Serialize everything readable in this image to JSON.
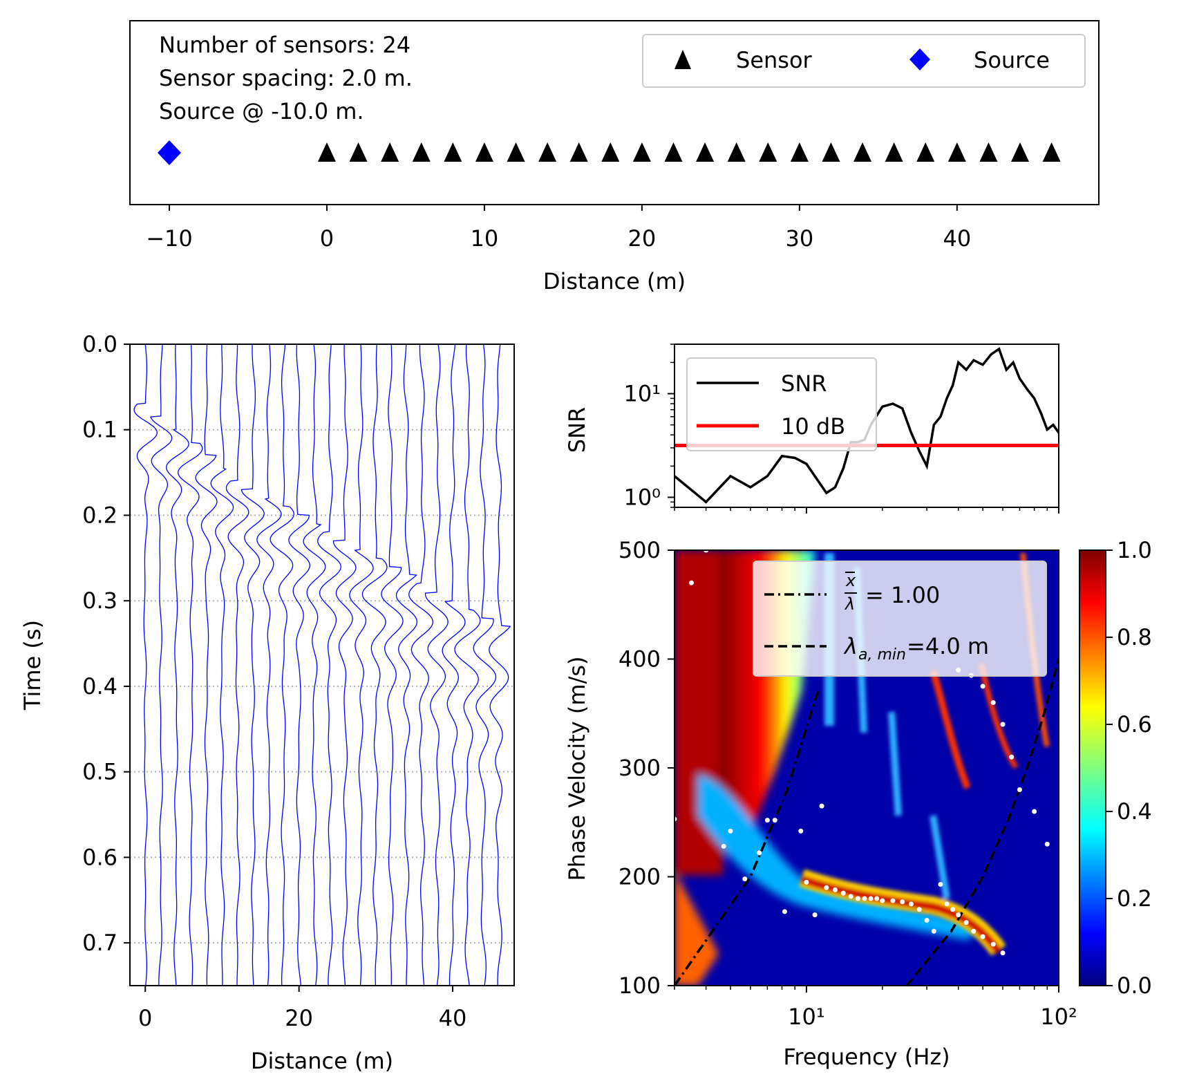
{
  "chart_data": [
    {
      "type": "scatter",
      "annotations": [
        "Number of sensors: 24",
        "Sensor spacing: 2.0 m.",
        "Source @ -10.0 m."
      ],
      "xlabel": "Distance (m)",
      "xlim": [
        -12.5,
        49
      ],
      "xticks": [
        -10,
        0,
        10,
        20,
        30,
        40
      ],
      "xtick_labels": [
        "−10",
        "0",
        "10",
        "20",
        "30",
        "40"
      ],
      "legend": {
        "entries": [
          "Sensor",
          "Source"
        ],
        "placement": "top-right"
      },
      "series": [
        {
          "name": "Sensor",
          "marker": "triangle",
          "color": "#000000",
          "x": [
            0,
            2,
            4,
            6,
            8,
            10,
            12,
            14,
            16,
            18,
            20,
            22,
            24,
            26,
            28,
            30,
            32,
            34,
            36,
            38,
            40,
            42,
            44,
            46
          ]
        },
        {
          "name": "Source",
          "marker": "diamond",
          "color": "#0000ff",
          "x": [
            -10
          ]
        }
      ]
    },
    {
      "type": "line",
      "xlabel": "Distance (m)",
      "ylabel": "Time (s)",
      "xlim": [
        -2,
        48
      ],
      "ylim": [
        0.75,
        0.0
      ],
      "xticks": [
        0,
        20,
        40
      ],
      "yticks": [
        0.0,
        0.1,
        0.2,
        0.3,
        0.4,
        0.5,
        0.6,
        0.7
      ],
      "ytick_labels": [
        "0.0",
        "0.1",
        "0.2",
        "0.3",
        "0.4",
        "0.5",
        "0.6",
        "0.7"
      ],
      "grid": "dotted horizontal",
      "trace_color": "#0000ff",
      "trace_offsets": [
        0,
        2,
        4,
        6,
        8,
        10,
        12,
        14,
        16,
        18,
        20,
        22,
        24,
        26,
        28,
        30,
        32,
        34,
        36,
        38,
        40,
        42,
        44,
        46
      ],
      "wave_onset_s": [
        0.09,
        0.105,
        0.12,
        0.135,
        0.15,
        0.165,
        0.18,
        0.19,
        0.2,
        0.21,
        0.22,
        0.23,
        0.24,
        0.25,
        0.26,
        0.27,
        0.28,
        0.29,
        0.3,
        0.31,
        0.32,
        0.33,
        0.34,
        0.35
      ]
    },
    {
      "type": "line",
      "ylabel": "SNR",
      "yscale": "log",
      "xscale": "log",
      "xlim": [
        3,
        100
      ],
      "ylim": [
        0.8,
        30
      ],
      "ytick_labels": [
        "10⁰",
        "10¹"
      ],
      "legend": {
        "entries": [
          "SNR",
          "10 dB"
        ],
        "placement": "upper-left"
      },
      "series": [
        {
          "name": "SNR",
          "color": "#000000",
          "x": [
            3,
            4,
            5,
            6,
            7,
            8,
            9,
            10,
            11,
            12,
            13,
            14,
            15,
            16,
            17,
            18,
            20,
            22,
            24,
            26,
            28,
            30,
            32,
            34,
            36,
            38,
            40,
            43,
            46,
            50,
            54,
            58,
            62,
            66,
            70,
            75,
            80,
            85,
            90,
            95,
            100
          ],
          "y": [
            1.6,
            0.9,
            1.6,
            1.25,
            1.6,
            2.5,
            2.4,
            2.1,
            1.5,
            1.1,
            1.25,
            1.9,
            3.4,
            3.4,
            3.6,
            5.0,
            7.5,
            8.0,
            7.2,
            4.2,
            2.8,
            2.0,
            5.0,
            6.0,
            9.0,
            12.0,
            20.0,
            17.0,
            21.0,
            19.0,
            24.0,
            27.0,
            17.0,
            20.0,
            14.0,
            11.0,
            9.0,
            6.5,
            4.5,
            5.0,
            4.2
          ]
        },
        {
          "name": "10 dB",
          "color": "#ff0000",
          "x": [
            3,
            100
          ],
          "y": [
            3.16,
            3.16
          ]
        }
      ]
    },
    {
      "type": "heatmap",
      "xlabel": "Frequency (Hz)",
      "ylabel": "Phase Velocity (m/s)",
      "xscale": "log",
      "xlim": [
        3,
        100
      ],
      "ylim": [
        100,
        500
      ],
      "yticks": [
        100,
        200,
        300,
        400,
        500
      ],
      "xtick_labels": [
        "10¹",
        "10²"
      ],
      "colormap": "jet",
      "colorbar": {
        "range": [
          0.0,
          1.0
        ],
        "tick_labels": [
          "0.0",
          "0.2",
          "0.4",
          "0.6",
          "0.8",
          "1.0"
        ]
      },
      "legend": {
        "entries": [
          "x̄/λ = 1.00",
          "λ_a,min=4.0 m"
        ],
        "placement": "upper-right"
      },
      "series": [
        {
          "name": "x̄/λ = 1.00",
          "style": "dash-dot",
          "color": "#000000",
          "x": [
            3,
            6,
            8.33,
            11.1
          ],
          "y": [
            100,
            200,
            278,
            370
          ]
        },
        {
          "name": "λ_a,min=4.0 m",
          "style": "dashed",
          "color": "#000000",
          "x": [
            25,
            37.5,
            50,
            62.5,
            75,
            87.5,
            100
          ],
          "y": [
            100,
            150,
            200,
            250,
            300,
            350,
            400
          ]
        },
        {
          "name": "picks",
          "style": "dots",
          "color": "#ffffff",
          "x": [
            3,
            3.5,
            4,
            4.7,
            5,
            5.7,
            6.5,
            7,
            7.5,
            8.2,
            9.5,
            10,
            10.8,
            11.5,
            12,
            13,
            14,
            15,
            16,
            17,
            18,
            19,
            20,
            22,
            24,
            26,
            28,
            30,
            32,
            34,
            36,
            38,
            40,
            43,
            46,
            50,
            55,
            60,
            40,
            45,
            50,
            55,
            60,
            65,
            70,
            80,
            90
          ],
          "y": [
            253,
            470,
            500,
            228,
            242,
            198,
            222,
            252,
            252,
            168,
            242,
            195,
            165,
            265,
            190,
            188,
            185,
            182,
            180,
            180,
            180,
            180,
            178,
            178,
            177,
            175,
            170,
            160,
            150,
            193,
            175,
            170,
            165,
            158,
            150,
            145,
            138,
            130,
            390,
            385,
            375,
            360,
            340,
            310,
            280,
            260,
            230
          ]
        }
      ]
    }
  ]
}
